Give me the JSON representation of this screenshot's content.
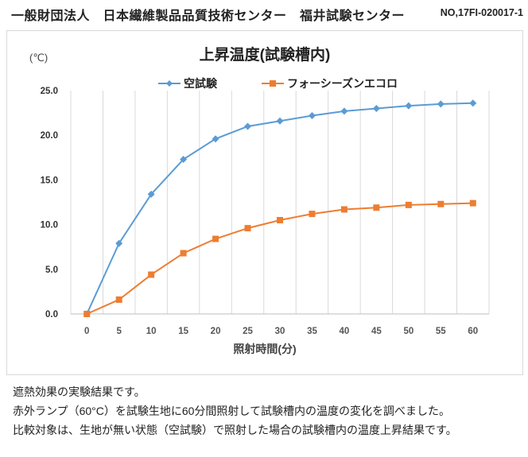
{
  "header": {
    "organization": "一般財団法人　日本繊維製品品質技術センター　福井試験センター",
    "document_no": "NO,17FI-020017-1"
  },
  "notes": [
    "遮熱効果の実験結果です。",
    "赤外ランプ（60°C）を試験生地に60分間照射して試験槽内の温度の変化を調べました。",
    "比較対象は、生地が無い状態（空試験）で照射した場合の試験槽内の温度上昇結果です。"
  ],
  "chart_data": {
    "type": "line",
    "title": "上昇温度(試験槽内)",
    "xlabel": "照射時間(分)",
    "ylabel": "(℃)",
    "categories": [
      "0",
      "5",
      "10",
      "15",
      "20",
      "25",
      "30",
      "35",
      "40",
      "45",
      "50",
      "55",
      "60"
    ],
    "ylim": [
      0,
      25
    ],
    "yticks": [
      "0.0",
      "5.0",
      "10.0",
      "15.0",
      "20.0",
      "25.0"
    ],
    "grid": "vertical",
    "legend": "top",
    "series": [
      {
        "name": "空試験",
        "color": "#5b9bd5",
        "marker": "diamond",
        "values": [
          0,
          7.9,
          13.4,
          17.3,
          19.6,
          21.0,
          21.6,
          22.2,
          22.7,
          23.0,
          23.3,
          23.5,
          23.6
        ]
      },
      {
        "name": "フォーシーズンエコロ",
        "color": "#ed7d31",
        "marker": "square",
        "values": [
          0,
          1.6,
          4.4,
          6.8,
          8.4,
          9.6,
          10.5,
          11.2,
          11.7,
          11.9,
          12.2,
          12.3,
          12.4
        ]
      }
    ]
  }
}
